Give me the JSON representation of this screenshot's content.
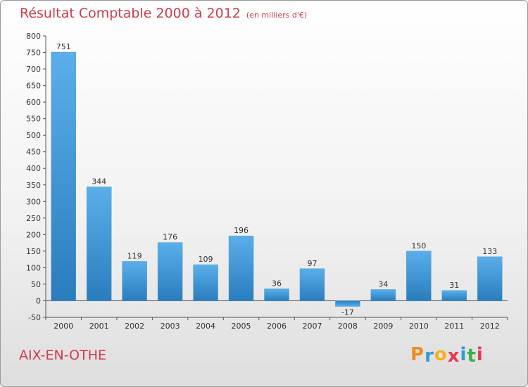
{
  "header": {
    "title": "Résultat Comptable 2000 à 2012",
    "unit": "(en milliers d'€)"
  },
  "footer": {
    "commune": "AIX-EN-OTHE",
    "logo_letters": [
      "P",
      "r",
      "o",
      "x",
      "i",
      "t",
      "i"
    ],
    "logo_colors": [
      "#f28c1e",
      "#2e9ad6",
      "#f2b21e",
      "#e8384f",
      "#2e9ad6",
      "#3bb24a",
      "#e8384f"
    ]
  },
  "chart_data": {
    "type": "bar",
    "title": "Résultat Comptable 2000 à 2012",
    "ylabel": "en milliers d'€",
    "xlabel": "",
    "categories": [
      "2000",
      "2001",
      "2002",
      "2003",
      "2004",
      "2005",
      "2006",
      "2007",
      "2008",
      "2009",
      "2010",
      "2011",
      "2012"
    ],
    "values": [
      751,
      344,
      119,
      176,
      109,
      196,
      36,
      97,
      -17,
      34,
      150,
      31,
      133
    ],
    "labels": [
      "751",
      "344",
      "119",
      "176",
      "109",
      "196",
      "36",
      "97",
      "-17",
      "34",
      "150",
      "31",
      "133"
    ],
    "yticks": [
      -50,
      0,
      50,
      100,
      150,
      200,
      250,
      300,
      350,
      400,
      450,
      500,
      550,
      600,
      650,
      700,
      750,
      800
    ],
    "ytick_labels": [
      "-50",
      "0",
      "50",
      "100",
      "150",
      "200",
      "250",
      "300",
      "350",
      "400",
      "450",
      "500",
      "550",
      "600",
      "650",
      "700",
      "750",
      "800"
    ],
    "ylim": [
      -50,
      800
    ],
    "grid": false,
    "bar_color_top": "#5aafea",
    "bar_color_bottom": "#2a7dbd"
  }
}
